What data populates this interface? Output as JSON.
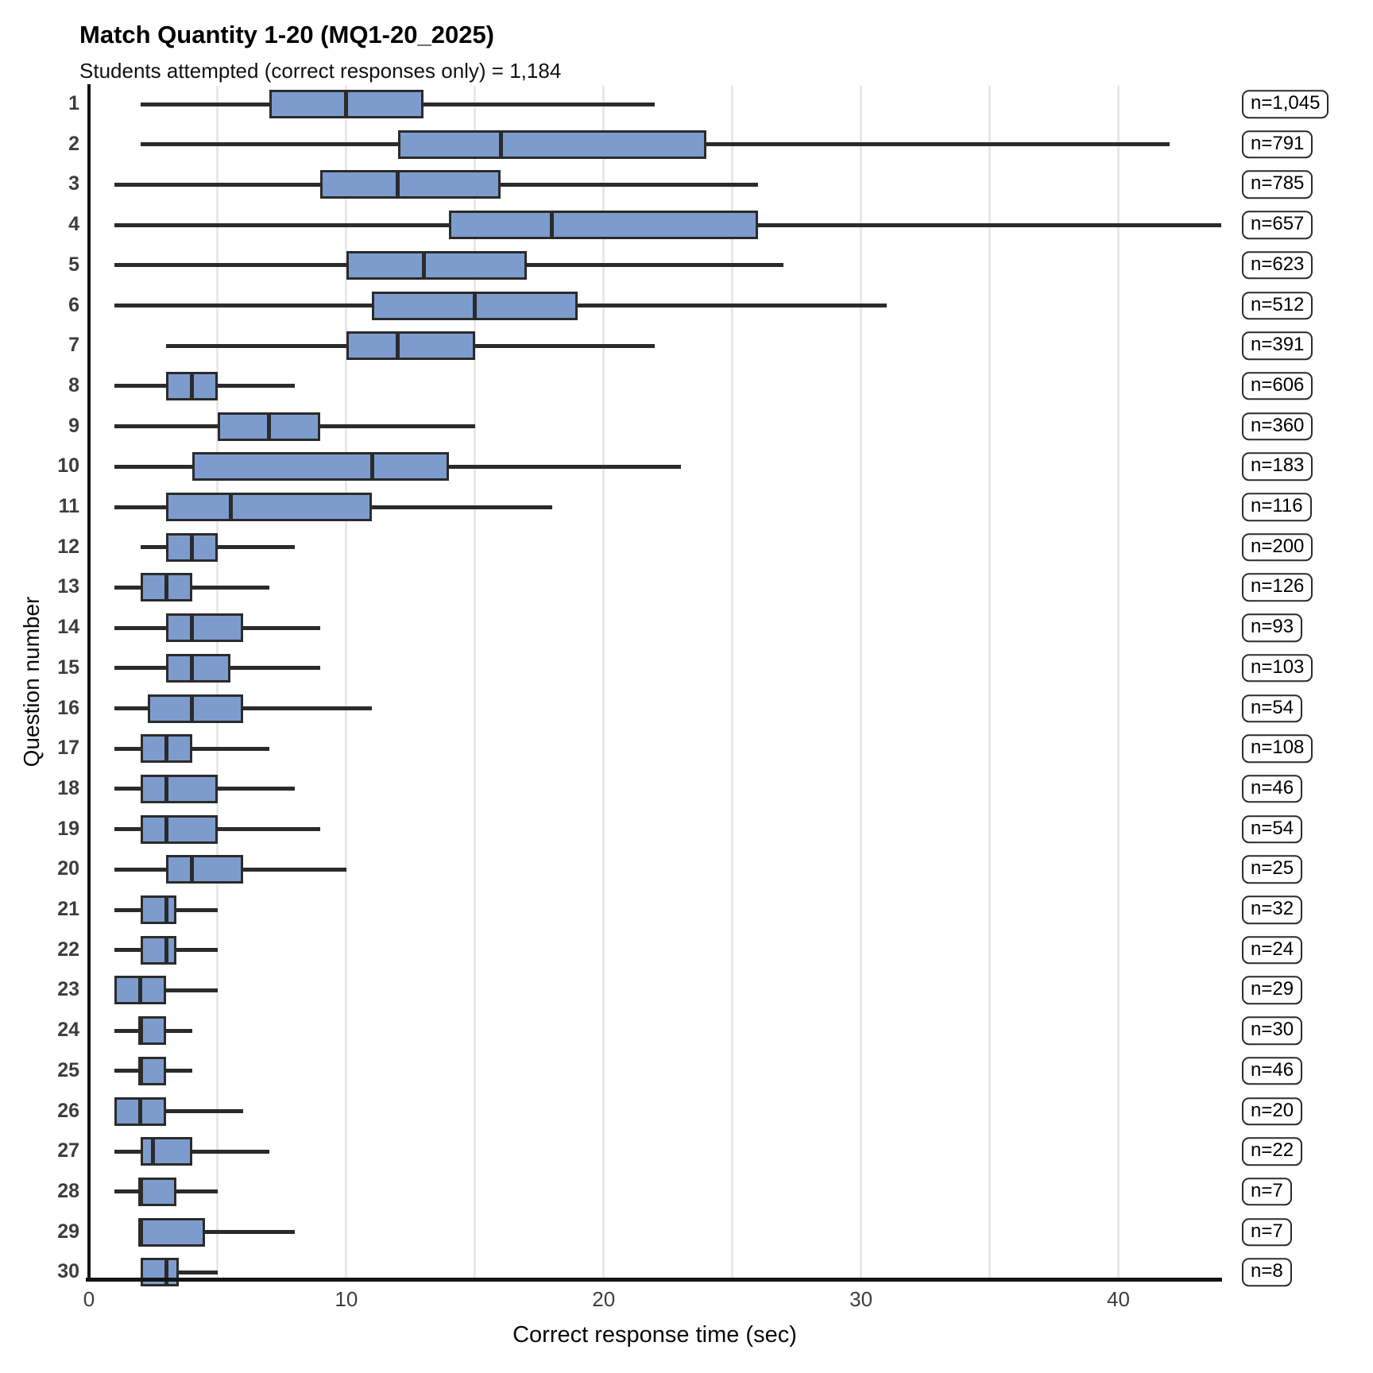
{
  "header": {
    "title": "Match Quantity 1-20 (MQ1-20_2025)",
    "subtitle": "Students attempted (correct responses only) = 1,184"
  },
  "chart_data": {
    "type": "boxplot",
    "orientation": "horizontal",
    "title": "Match Quantity 1-20 (MQ1-20_2025)",
    "subtitle": "Students attempted (correct responses only) = 1,184",
    "xlabel": "Correct response time (sec)",
    "ylabel": "Question number",
    "xlim": [
      0,
      44
    ],
    "x_ticks": [
      0,
      10,
      20,
      30,
      40
    ],
    "gridlines_x": [
      5,
      10,
      15,
      20,
      25,
      30,
      35,
      40
    ],
    "grid": "vertical-only",
    "legend": "none",
    "box_fill": "#7d9ccd",
    "box_stroke": "#2b2b2b",
    "grid_color": "#e8e8e8",
    "axis_color": "#141414",
    "rows": [
      {
        "question": "1",
        "n_label": "n=1,045",
        "whisker_low": 2,
        "q1": 7,
        "median": 10,
        "q3": 13,
        "whisker_high": 22
      },
      {
        "question": "2",
        "n_label": "n=791",
        "whisker_low": 2,
        "q1": 12,
        "median": 16,
        "q3": 24,
        "whisker_high": 42
      },
      {
        "question": "3",
        "n_label": "n=785",
        "whisker_low": 1,
        "q1": 9,
        "median": 12,
        "q3": 16,
        "whisker_high": 26
      },
      {
        "question": "4",
        "n_label": "n=657",
        "whisker_low": 1,
        "q1": 14,
        "median": 18,
        "q3": 26,
        "whisker_high": 44
      },
      {
        "question": "5",
        "n_label": "n=623",
        "whisker_low": 1,
        "q1": 10,
        "median": 13,
        "q3": 17,
        "whisker_high": 27
      },
      {
        "question": "6",
        "n_label": "n=512",
        "whisker_low": 1,
        "q1": 11,
        "median": 15,
        "q3": 19,
        "whisker_high": 31
      },
      {
        "question": "7",
        "n_label": "n=391",
        "whisker_low": 3,
        "q1": 10,
        "median": 12,
        "q3": 15,
        "whisker_high": 22
      },
      {
        "question": "8",
        "n_label": "n=606",
        "whisker_low": 1,
        "q1": 3,
        "median": 4,
        "q3": 5,
        "whisker_high": 8
      },
      {
        "question": "9",
        "n_label": "n=360",
        "whisker_low": 1,
        "q1": 5,
        "median": 7,
        "q3": 9,
        "whisker_high": 15
      },
      {
        "question": "10",
        "n_label": "n=183",
        "whisker_low": 1,
        "q1": 4,
        "median": 11,
        "q3": 14,
        "whisker_high": 23
      },
      {
        "question": "11",
        "n_label": "n=116",
        "whisker_low": 1,
        "q1": 3,
        "median": 5.5,
        "q3": 11,
        "whisker_high": 18
      },
      {
        "question": "12",
        "n_label": "n=200",
        "whisker_low": 2,
        "q1": 3,
        "median": 4,
        "q3": 5,
        "whisker_high": 8
      },
      {
        "question": "13",
        "n_label": "n=126",
        "whisker_low": 1,
        "q1": 2,
        "median": 3,
        "q3": 4,
        "whisker_high": 7
      },
      {
        "question": "14",
        "n_label": "n=93",
        "whisker_low": 1,
        "q1": 3,
        "median": 4,
        "q3": 6,
        "whisker_high": 9
      },
      {
        "question": "15",
        "n_label": "n=103",
        "whisker_low": 1,
        "q1": 3,
        "median": 4,
        "q3": 5.5,
        "whisker_high": 9
      },
      {
        "question": "16",
        "n_label": "n=54",
        "whisker_low": 1,
        "q1": 2.3,
        "median": 4,
        "q3": 6,
        "whisker_high": 11
      },
      {
        "question": "17",
        "n_label": "n=108",
        "whisker_low": 1,
        "q1": 2,
        "median": 3,
        "q3": 4,
        "whisker_high": 7
      },
      {
        "question": "18",
        "n_label": "n=46",
        "whisker_low": 1,
        "q1": 2,
        "median": 3,
        "q3": 5,
        "whisker_high": 8
      },
      {
        "question": "19",
        "n_label": "n=54",
        "whisker_low": 1,
        "q1": 2,
        "median": 3,
        "q3": 5,
        "whisker_high": 9
      },
      {
        "question": "20",
        "n_label": "n=25",
        "whisker_low": 1,
        "q1": 3,
        "median": 4,
        "q3": 6,
        "whisker_high": 10
      },
      {
        "question": "21",
        "n_label": "n=32",
        "whisker_low": 1,
        "q1": 2,
        "median": 3,
        "q3": 3.4,
        "whisker_high": 5
      },
      {
        "question": "22",
        "n_label": "n=24",
        "whisker_low": 1,
        "q1": 2,
        "median": 3,
        "q3": 3.4,
        "whisker_high": 5
      },
      {
        "question": "23",
        "n_label": "n=29",
        "whisker_low": 1,
        "q1": 1,
        "median": 2,
        "q3": 3,
        "whisker_high": 5
      },
      {
        "question": "24",
        "n_label": "n=30",
        "whisker_low": 1,
        "q1": 2,
        "median": 2,
        "q3": 3,
        "whisker_high": 4
      },
      {
        "question": "25",
        "n_label": "n=46",
        "whisker_low": 1,
        "q1": 2,
        "median": 2,
        "q3": 3,
        "whisker_high": 4
      },
      {
        "question": "26",
        "n_label": "n=20",
        "whisker_low": 1,
        "q1": 1,
        "median": 2,
        "q3": 3,
        "whisker_high": 6
      },
      {
        "question": "27",
        "n_label": "n=22",
        "whisker_low": 1,
        "q1": 2,
        "median": 2.5,
        "q3": 4,
        "whisker_high": 7
      },
      {
        "question": "28",
        "n_label": "n=7",
        "whisker_low": 1,
        "q1": 2,
        "median": 2,
        "q3": 3.4,
        "whisker_high": 5
      },
      {
        "question": "29",
        "n_label": "n=7",
        "whisker_low": 2,
        "q1": 2,
        "median": 2,
        "q3": 4.5,
        "whisker_high": 8
      },
      {
        "question": "30",
        "n_label": "n=8",
        "whisker_low": 2,
        "q1": 2,
        "median": 3,
        "q3": 3.5,
        "whisker_high": 5
      }
    ]
  }
}
